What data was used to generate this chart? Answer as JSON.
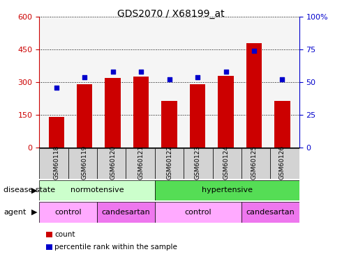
{
  "title": "GDS2070 / X68199_at",
  "samples": [
    "GSM60118",
    "GSM60119",
    "GSM60120",
    "GSM60121",
    "GSM60122",
    "GSM60123",
    "GSM60124",
    "GSM60125",
    "GSM60126"
  ],
  "counts": [
    140,
    290,
    320,
    325,
    215,
    290,
    330,
    480,
    215
  ],
  "percentiles": [
    46,
    54,
    58,
    58,
    52,
    54,
    58,
    74,
    52
  ],
  "ylim_left": [
    0,
    600
  ],
  "ylim_right": [
    0,
    100
  ],
  "yticks_left": [
    0,
    150,
    300,
    450,
    600
  ],
  "yticks_right": [
    0,
    25,
    50,
    75,
    100
  ],
  "ytick_labels_right": [
    "0",
    "25",
    "50",
    "75",
    "100%"
  ],
  "bar_color": "#cc0000",
  "scatter_color": "#0000cc",
  "left_axis_color": "#cc0000",
  "right_axis_color": "#0000cc",
  "disease_state_groups": [
    {
      "label": "normotensive",
      "start": 0,
      "end": 4,
      "color": "#ccffcc"
    },
    {
      "label": "hypertensive",
      "start": 4,
      "end": 9,
      "color": "#55dd55"
    }
  ],
  "agent_groups": [
    {
      "label": "control",
      "start": 0,
      "end": 2,
      "color": "#ffaaff"
    },
    {
      "label": "candesartan",
      "start": 2,
      "end": 4,
      "color": "#ee77ee"
    },
    {
      "label": "control",
      "start": 4,
      "end": 7,
      "color": "#ffaaff"
    },
    {
      "label": "candesartan",
      "start": 7,
      "end": 9,
      "color": "#ee77ee"
    }
  ],
  "legend_items": [
    {
      "label": "count",
      "color": "#cc0000"
    },
    {
      "label": "percentile rank within the sample",
      "color": "#0000cc"
    }
  ]
}
